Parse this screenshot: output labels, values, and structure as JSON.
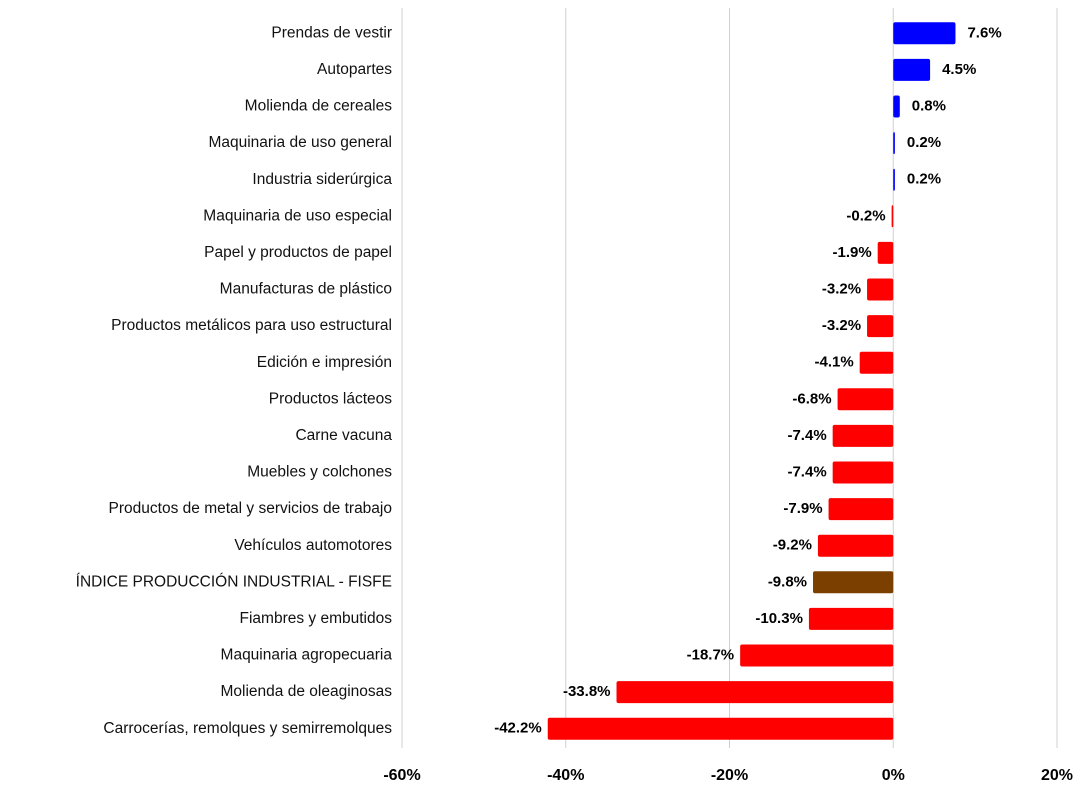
{
  "chart_data": {
    "type": "bar",
    "orientation": "horizontal",
    "categories": [
      "Prendas de vestir",
      "Autopartes",
      "Molienda de cereales",
      "Maquinaria de uso general",
      "Industria siderúrgica",
      "Maquinaria de uso especial",
      "Papel y productos de papel",
      "Manufacturas de plástico",
      "Productos metálicos para uso estructural",
      "Edición e impresión",
      "Productos lácteos",
      "Carne vacuna",
      "Muebles y colchones",
      "Productos de metal y servicios de trabajo",
      "Vehículos automotores",
      "ÍNDICE PRODUCCIÓN INDUSTRIAL - FISFE",
      "Fiambres y embutidos",
      "Maquinaria agropecuaria",
      "Molienda de oleaginosas",
      "Carrocerías, remolques y semirremolques"
    ],
    "values": [
      7.6,
      4.5,
      0.8,
      0.2,
      0.2,
      -0.2,
      -1.9,
      -3.2,
      -3.2,
      -4.1,
      -6.8,
      -7.4,
      -7.4,
      -7.9,
      -9.2,
      -9.8,
      -10.3,
      -18.7,
      -33.8,
      -42.2
    ],
    "value_labels": [
      "7.6%",
      "4.5%",
      "0.8%",
      "0.2%",
      "0.2%",
      "-0.2%",
      "-1.9%",
      "-3.2%",
      "-3.2%",
      "-4.1%",
      "-6.8%",
      "-7.4%",
      "-7.4%",
      "-7.9%",
      "-9.2%",
      "-9.8%",
      "-10.3%",
      "-18.7%",
      "-33.8%",
      "-42.2%"
    ],
    "colors": [
      "#0000ff",
      "#0000ff",
      "#0000ff",
      "#0000ff",
      "#0000ff",
      "#ff0000",
      "#ff0000",
      "#ff0000",
      "#ff0000",
      "#ff0000",
      "#ff0000",
      "#ff0000",
      "#ff0000",
      "#ff0000",
      "#ff0000",
      "#7b3f00",
      "#ff0000",
      "#ff0000",
      "#ff0000",
      "#ff0000"
    ],
    "xlim": [
      -60,
      20
    ],
    "xticks": [
      {
        "value": -60,
        "label": "-60%"
      },
      {
        "value": -40,
        "label": "-40%"
      },
      {
        "value": -20,
        "label": "-20%"
      },
      {
        "value": 0,
        "label": "0%"
      },
      {
        "value": 20,
        "label": "20%"
      }
    ],
    "grid": true
  }
}
